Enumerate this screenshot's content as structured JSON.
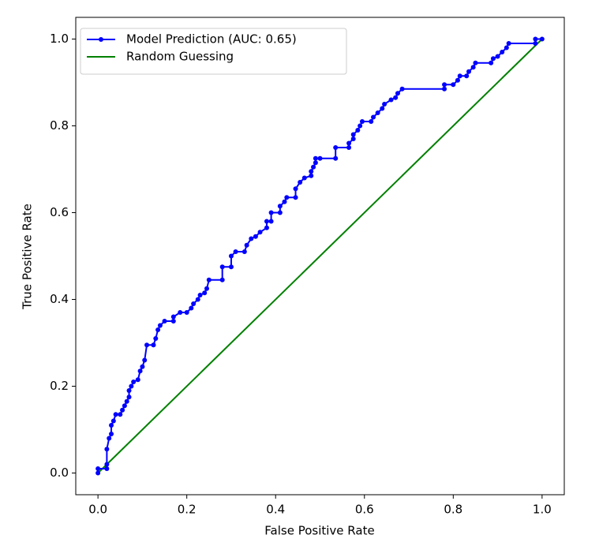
{
  "chart_data": {
    "type": "line",
    "xlabel": "False Positive Rate",
    "ylabel": "True Positive Rate",
    "xlim": [
      -0.05,
      1.05
    ],
    "ylim": [
      -0.05,
      1.05
    ],
    "xticks": [
      {
        "value": 0,
        "label": "0.0"
      },
      0.2,
      0.4,
      0.6,
      0.8,
      {
        "value": 1,
        "label": "1.0"
      }
    ],
    "yticks": [
      {
        "value": 0,
        "label": "0.0"
      },
      0.2,
      0.4,
      0.6,
      0.8,
      {
        "value": 1,
        "label": "1.0"
      }
    ],
    "grid": false,
    "legend": "upper left",
    "series": [
      {
        "name": "Model Prediction (AUC: 0.65)",
        "color": "#0000ff",
        "marker": true,
        "x": [
          0,
          0,
          0.02,
          0.02,
          0.02,
          0.025,
          0.03,
          0.03,
          0.035,
          0.04,
          0.05,
          0.055,
          0.06,
          0.065,
          0.07,
          0.07,
          0.075,
          0.08,
          0.09,
          0.095,
          0.1,
          0.105,
          0.11,
          0.125,
          0.13,
          0.135,
          0.14,
          0.15,
          0.17,
          0.17,
          0.185,
          0.2,
          0.21,
          0.215,
          0.225,
          0.23,
          0.24,
          0.245,
          0.25,
          0.28,
          0.28,
          0.3,
          0.3,
          0.31,
          0.33,
          0.335,
          0.345,
          0.355,
          0.365,
          0.38,
          0.38,
          0.39,
          0.39,
          0.41,
          0.41,
          0.42,
          0.425,
          0.445,
          0.445,
          0.455,
          0.465,
          0.48,
          0.48,
          0.485,
          0.49,
          0.49,
          0.5,
          0.535,
          0.535,
          0.565,
          0.565,
          0.575,
          0.575,
          0.585,
          0.59,
          0.595,
          0.615,
          0.62,
          0.63,
          0.64,
          0.645,
          0.66,
          0.67,
          0.675,
          0.685,
          0.78,
          0.78,
          0.8,
          0.81,
          0.815,
          0.83,
          0.835,
          0.845,
          0.85,
          0.885,
          0.89,
          0.9,
          0.91,
          0.92,
          0.925,
          0.985,
          0.985,
          1.0
        ],
        "values": [
          0,
          0.01,
          0.01,
          0.02,
          0.055,
          0.08,
          0.09,
          0.11,
          0.12,
          0.135,
          0.135,
          0.145,
          0.155,
          0.165,
          0.175,
          0.19,
          0.2,
          0.21,
          0.215,
          0.235,
          0.245,
          0.26,
          0.295,
          0.295,
          0.31,
          0.33,
          0.34,
          0.35,
          0.35,
          0.36,
          0.37,
          0.37,
          0.38,
          0.39,
          0.4,
          0.41,
          0.415,
          0.425,
          0.445,
          0.445,
          0.475,
          0.475,
          0.5,
          0.51,
          0.51,
          0.525,
          0.54,
          0.545,
          0.555,
          0.565,
          0.58,
          0.58,
          0.6,
          0.6,
          0.615,
          0.625,
          0.635,
          0.635,
          0.655,
          0.67,
          0.68,
          0.685,
          0.695,
          0.705,
          0.715,
          0.725,
          0.725,
          0.725,
          0.75,
          0.75,
          0.76,
          0.77,
          0.78,
          0.79,
          0.8,
          0.81,
          0.81,
          0.82,
          0.83,
          0.84,
          0.85,
          0.86,
          0.865,
          0.875,
          0.885,
          0.885,
          0.895,
          0.895,
          0.905,
          0.915,
          0.915,
          0.925,
          0.935,
          0.945,
          0.945,
          0.955,
          0.96,
          0.97,
          0.98,
          0.99,
          0.99,
          1.0,
          1.0
        ]
      },
      {
        "name": "Random Guessing",
        "color": "#008000",
        "marker": false,
        "x": [
          0,
          1
        ],
        "values": [
          0,
          1
        ]
      }
    ]
  }
}
